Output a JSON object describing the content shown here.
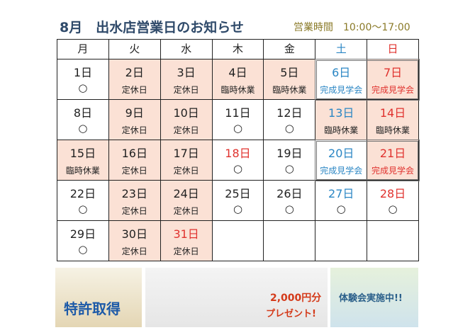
{
  "header": {
    "title": "8月　出水店営業日のお知らせ",
    "hours": "営業時間　10:00～17:00"
  },
  "calendar": {
    "weekdays": [
      {
        "label": "月"
      },
      {
        "label": "火"
      },
      {
        "label": "水"
      },
      {
        "label": "木"
      },
      {
        "label": "金"
      },
      {
        "label": "土",
        "color": "#2a86c4"
      },
      {
        "label": "日",
        "color": "#e0322e"
      }
    ],
    "weeks": [
      [
        {
          "day": "1日",
          "note": "○"
        },
        {
          "day": "2日",
          "note": "定休日",
          "fill": "#fbe1d5"
        },
        {
          "day": "3日",
          "note": "定休日",
          "fill": "#fbe1d5"
        },
        {
          "day": "4日",
          "note": "臨時休業",
          "fill": "#fbe1d5"
        },
        {
          "day": "5日",
          "note": "臨時休業",
          "fill": "#fbe1d5"
        },
        {
          "day": "6日",
          "note": "完成見学会",
          "color": "#2a86c4"
        },
        {
          "day": "7日",
          "note": "完成見学会",
          "color": "#e0322e",
          "fill": "#fbe1d5"
        }
      ],
      [
        {
          "day": "8日",
          "note": "○"
        },
        {
          "day": "9日",
          "note": "定休日",
          "fill": "#fbe1d5"
        },
        {
          "day": "10日",
          "note": "定休日",
          "fill": "#fbe1d5"
        },
        {
          "day": "11日",
          "note": "○"
        },
        {
          "day": "12日",
          "note": "○"
        },
        {
          "day": "13日",
          "note": "臨時休業",
          "day_color": "#2a86c4",
          "fill": "#fbe1d5"
        },
        {
          "day": "14日",
          "note": "臨時休業",
          "day_color": "#e0322e",
          "fill": "#fbe1d5"
        }
      ],
      [
        {
          "day": "15日",
          "note": "臨時休業",
          "fill": "#fbe1d5"
        },
        {
          "day": "16日",
          "note": "定休日",
          "fill": "#fbe1d5"
        },
        {
          "day": "17日",
          "note": "定休日",
          "fill": "#fbe1d5"
        },
        {
          "day": "18日",
          "note": "○",
          "day_color": "#e0322e"
        },
        {
          "day": "19日",
          "note": "○"
        },
        {
          "day": "20日",
          "note": "完成見学会",
          "color": "#2a86c4"
        },
        {
          "day": "21日",
          "note": "完成見学会",
          "color": "#e0322e",
          "fill": "#fbe1d5"
        }
      ],
      [
        {
          "day": "22日",
          "note": "○"
        },
        {
          "day": "23日",
          "note": "定休日",
          "fill": "#fbe1d5"
        },
        {
          "day": "24日",
          "note": "定休日",
          "fill": "#fbe1d5"
        },
        {
          "day": "25日",
          "note": "○"
        },
        {
          "day": "26日",
          "note": "○"
        },
        {
          "day": "27日",
          "note": "○",
          "day_color": "#2a86c4"
        },
        {
          "day": "28日",
          "note": "○",
          "day_color": "#e0322e"
        }
      ],
      [
        {
          "day": "29日",
          "note": "○"
        },
        {
          "day": "30日",
          "note": "定休日",
          "fill": "#fbe1d5"
        },
        {
          "day": "31日",
          "note": "定休日",
          "day_color": "#e0322e",
          "fill": "#fbe1d5"
        },
        null,
        null,
        null,
        null
      ]
    ]
  },
  "banners": [
    {
      "texts": [
        "特許取得"
      ]
    },
    {
      "texts": [
        "2,000円分",
        "プレゼント!"
      ]
    },
    {
      "texts": [
        "体験会実施中!!"
      ]
    }
  ]
}
